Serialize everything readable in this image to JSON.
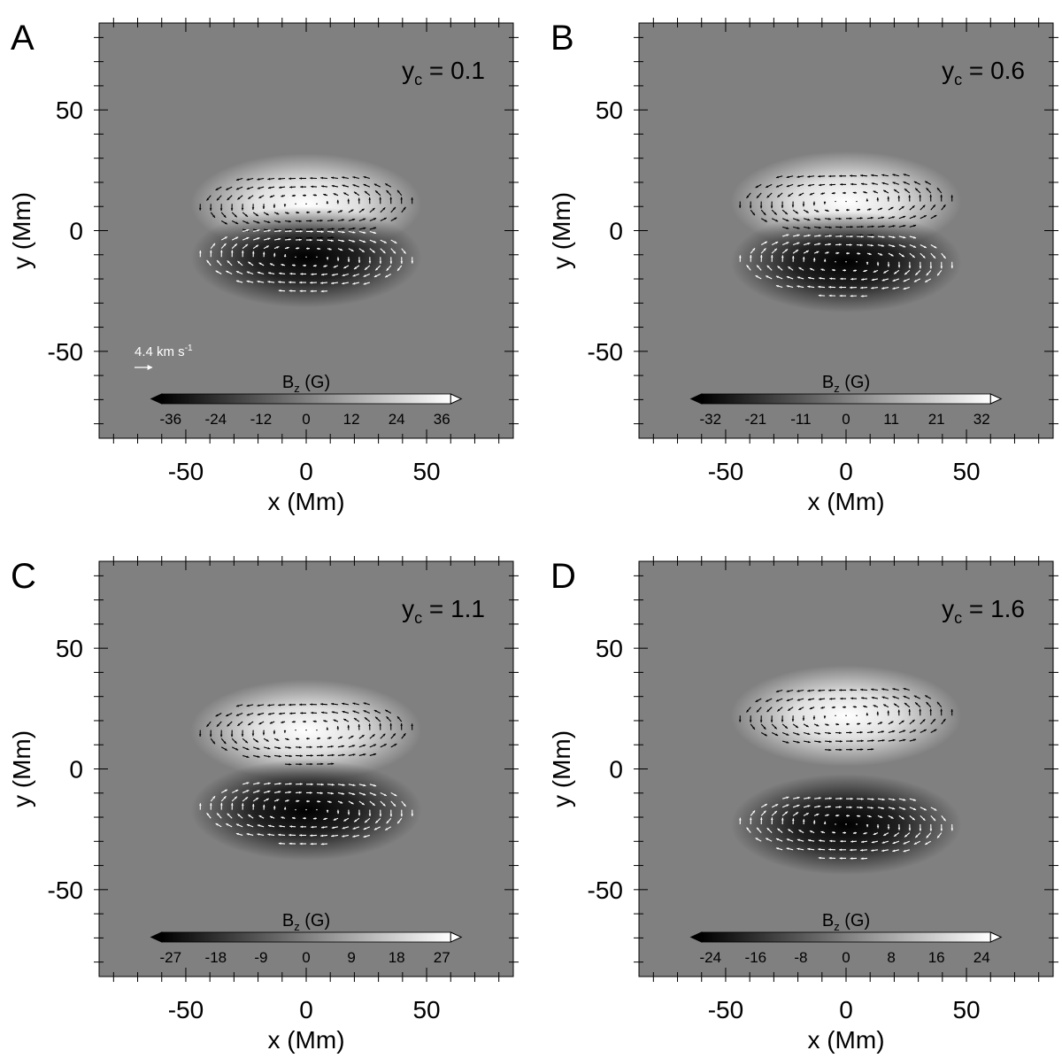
{
  "vector_scale_label": "4.4 km s",
  "vector_scale_label_sup": "-1",
  "chart_data": [
    {
      "type": "heatmap",
      "panel_label": "A",
      "annotation": {
        "base": "y",
        "sub": "c",
        "text": " = 0.1"
      },
      "xlabel": "x (Mm)",
      "ylabel": "y (Mm)",
      "xlim": [
        -86,
        86
      ],
      "ylim": [
        -86,
        86
      ],
      "xticks": [
        -50,
        0,
        50
      ],
      "yticks": [
        -50,
        0,
        50
      ],
      "colorbar": {
        "label_base": "B",
        "label_sub": "z",
        "label_unit": " (G)",
        "ticks": [
          "-36",
          "-24",
          "-12",
          "0",
          "12",
          "24",
          "36"
        ],
        "range": [
          -36,
          36
        ]
      },
      "sources": {
        "positive_center": [
          0,
          11
        ],
        "negative_center": [
          0,
          -11
        ],
        "peak": 36
      },
      "show_vector_scale": true
    },
    {
      "type": "heatmap",
      "panel_label": "B",
      "annotation": {
        "base": "y",
        "sub": "c",
        "text": " = 0.6"
      },
      "xlabel": "x (Mm)",
      "ylabel": "y (Mm)",
      "xlim": [
        -86,
        86
      ],
      "ylim": [
        -86,
        86
      ],
      "xticks": [
        -50,
        0,
        50
      ],
      "yticks": [
        -50,
        0,
        50
      ],
      "colorbar": {
        "label_base": "B",
        "label_sub": "z",
        "label_unit": " (G)",
        "ticks": [
          "-32",
          "-21",
          "-11",
          "0",
          "11",
          "21",
          "32"
        ],
        "range": [
          -32,
          32
        ]
      },
      "sources": {
        "positive_center": [
          0,
          12
        ],
        "negative_center": [
          0,
          -13
        ],
        "peak": 32
      },
      "show_vector_scale": false
    },
    {
      "type": "heatmap",
      "panel_label": "C",
      "annotation": {
        "base": "y",
        "sub": "c",
        "text": " = 1.1"
      },
      "xlabel": "x (Mm)",
      "ylabel": "y (Mm)",
      "xlim": [
        -86,
        86
      ],
      "ylim": [
        -86,
        86
      ],
      "xticks": [
        -50,
        0,
        50
      ],
      "yticks": [
        -50,
        0,
        50
      ],
      "colorbar": {
        "label_base": "B",
        "label_sub": "z",
        "label_unit": " (G)",
        "ticks": [
          "-27",
          "-18",
          "-9",
          "0",
          "9",
          "18",
          "27"
        ],
        "range": [
          -27,
          27
        ]
      },
      "sources": {
        "positive_center": [
          0,
          16
        ],
        "negative_center": [
          0,
          -17
        ],
        "peak": 27
      },
      "show_vector_scale": false
    },
    {
      "type": "heatmap",
      "panel_label": "D",
      "annotation": {
        "base": "y",
        "sub": "c",
        "text": " = 1.6"
      },
      "xlabel": "x (Mm)",
      "ylabel": "y (Mm)",
      "xlim": [
        -86,
        86
      ],
      "ylim": [
        -86,
        86
      ],
      "xticks": [
        -50,
        0,
        50
      ],
      "yticks": [
        -50,
        0,
        50
      ],
      "colorbar": {
        "label_base": "B",
        "label_sub": "z",
        "label_unit": " (G)",
        "ticks": [
          "-24",
          "-16",
          "-8",
          "0",
          "8",
          "16",
          "24"
        ],
        "range": [
          -24,
          24
        ]
      },
      "sources": {
        "positive_center": [
          0,
          22
        ],
        "negative_center": [
          0,
          -23
        ],
        "peak": 24
      },
      "show_vector_scale": false
    }
  ]
}
